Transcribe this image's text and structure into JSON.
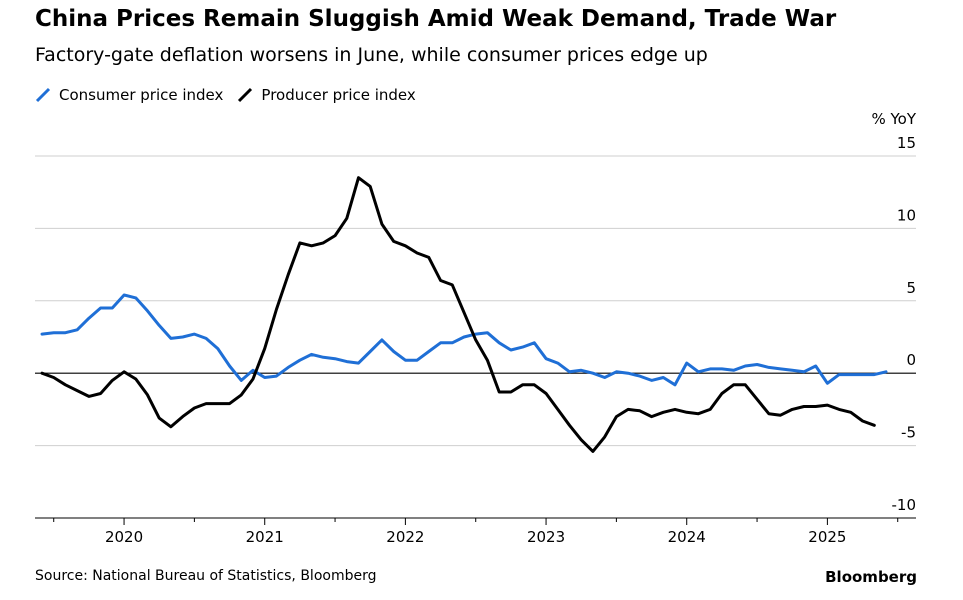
{
  "header": {
    "title": "China Prices Remain Sluggish Amid Weak Demand, Trade War",
    "subtitle": "Factory-gate deflation worsens in June, while consumer prices edge up"
  },
  "footer": {
    "source": "Source: National Bureau of Statistics, Bloomberg",
    "brand": "Bloomberg"
  },
  "chart_data": {
    "type": "line",
    "ylabel": "% YoY",
    "ylim": [
      -10,
      15
    ],
    "yticks": [
      15,
      10,
      5,
      0,
      -5,
      -10
    ],
    "xticks": [
      "2020",
      "2021",
      "2022",
      "2023",
      "2024",
      "2025"
    ],
    "x_start": "2019-06",
    "x_end": "2025-06",
    "grid": true,
    "legend_position": "top-left",
    "series": [
      {
        "name": "Consumer price index",
        "color": "#1f6fd6",
        "values": [
          2.7,
          2.8,
          2.8,
          3.0,
          3.8,
          4.5,
          4.5,
          5.4,
          5.2,
          4.3,
          3.3,
          2.4,
          2.5,
          2.7,
          2.4,
          1.7,
          0.5,
          -0.5,
          0.2,
          -0.3,
          -0.2,
          0.4,
          0.9,
          1.3,
          1.1,
          1.0,
          0.8,
          0.7,
          1.5,
          2.3,
          1.5,
          0.9,
          0.9,
          1.5,
          2.1,
          2.1,
          2.5,
          2.7,
          2.8,
          2.1,
          1.6,
          1.8,
          2.1,
          1.0,
          0.7,
          0.1,
          0.2,
          0.0,
          -0.3,
          0.1,
          0.0,
          -0.2,
          -0.5,
          -0.3,
          -0.8,
          0.7,
          0.1,
          0.3,
          0.3,
          0.2,
          0.5,
          0.6,
          0.4,
          0.3,
          0.2,
          0.1,
          0.5,
          -0.7,
          -0.1,
          -0.1,
          -0.1,
          -0.1,
          0.1
        ]
      },
      {
        "name": "Producer price index",
        "color": "#000000",
        "values": [
          0.0,
          -0.3,
          -0.8,
          -1.2,
          -1.6,
          -1.4,
          -0.5,
          0.1,
          -0.4,
          -1.5,
          -3.1,
          -3.7,
          -3.0,
          -2.4,
          -2.1,
          -2.1,
          -2.1,
          -1.5,
          -0.4,
          1.7,
          4.4,
          6.8,
          9.0,
          8.8,
          9.0,
          9.5,
          10.7,
          13.5,
          12.9,
          10.3,
          9.1,
          8.8,
          8.3,
          8.0,
          6.4,
          6.1,
          4.2,
          2.3,
          0.9,
          -1.3,
          -1.3,
          -0.8,
          -0.8,
          -1.4,
          -2.5,
          -3.6,
          -4.6,
          -5.4,
          -4.4,
          -3.0,
          -2.5,
          -2.6,
          -3.0,
          -2.7,
          -2.5,
          -2.7,
          -2.8,
          -2.5,
          -1.4,
          -0.8,
          -0.8,
          -1.8,
          -2.8,
          -2.9,
          -2.5,
          -2.3,
          -2.3,
          -2.2,
          -2.5,
          -2.7,
          -3.3,
          -3.6
        ]
      }
    ]
  }
}
